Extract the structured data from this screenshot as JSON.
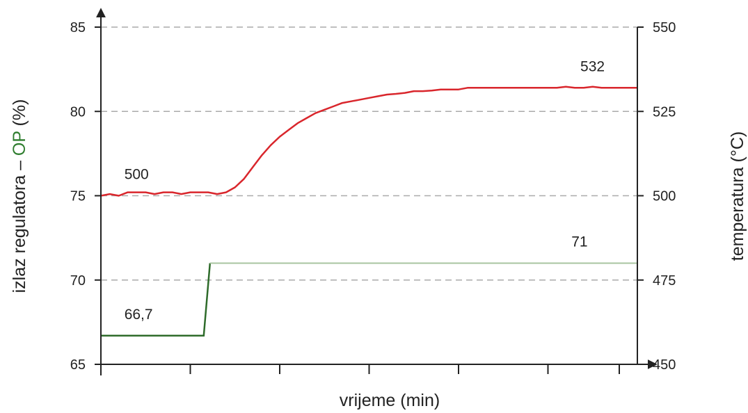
{
  "chart_data": {
    "type": "line",
    "xlabel": "vrijeme (min)",
    "ylabel_left_prefix": "izlaz regulatora – ",
    "ylabel_left_highlight": "OP",
    "ylabel_left_suffix": " (%)",
    "ylabel_right": "temperatura (°C)",
    "left_axis": {
      "ylim": [
        65,
        85
      ],
      "ticks": [
        "65",
        "70",
        "75",
        "80",
        "85"
      ]
    },
    "right_axis": {
      "ylim": [
        450,
        550
      ],
      "ticks": [
        "450",
        "475",
        "500",
        "525",
        "550"
      ]
    },
    "grid": "dashed horizontal",
    "colors": {
      "temperature": "#d9262c",
      "op": "#2e6b2a",
      "op_after": "#a8c4a0",
      "grid": "#aaaaaa",
      "axis": "#222222",
      "op_label": "#2e7d2e"
    },
    "series": [
      {
        "axis": "right",
        "x": [
          0,
          1,
          2,
          3,
          4,
          5,
          6,
          7,
          8,
          9,
          10,
          11,
          12,
          13,
          14,
          15,
          16,
          17,
          18,
          19,
          20,
          21,
          22,
          23,
          24,
          25,
          26,
          27,
          28,
          29,
          30,
          31,
          32,
          33,
          34,
          35,
          36,
          37,
          38,
          39,
          40,
          41,
          42,
          43,
          44,
          45,
          46,
          47,
          48,
          49,
          50,
          51,
          52,
          53,
          54,
          55,
          56,
          57,
          58,
          59,
          60
        ],
        "values": [
          500,
          500.5,
          500,
          501,
          501,
          501,
          500.5,
          501,
          501,
          500.5,
          501,
          501,
          501,
          500.5,
          501,
          502.5,
          505,
          508.5,
          512,
          515,
          517.5,
          519.5,
          521.5,
          523,
          524.5,
          525.5,
          526.5,
          527.5,
          528,
          528.5,
          529,
          529.5,
          530,
          530.2,
          530.5,
          531,
          531,
          531.2,
          531.5,
          531.5,
          531.5,
          532,
          532,
          532,
          532,
          532,
          532,
          532,
          532,
          532,
          532,
          532,
          532.3,
          532,
          532,
          532.3,
          532,
          532,
          532,
          532,
          532
        ]
      },
      {
        "axis": "left",
        "x": [
          0,
          11.5,
          12.2,
          60
        ],
        "values": [
          66.7,
          66.7,
          71,
          71
        ]
      }
    ],
    "annotations": [
      {
        "text": "500",
        "series": 0,
        "x": 2,
        "y": 500
      },
      {
        "text": "532",
        "series": 0,
        "x": 53,
        "y": 532
      },
      {
        "text": "66,7",
        "series": 1,
        "x": 2,
        "y": 66.7
      },
      {
        "text": "71",
        "series": 1,
        "x": 52,
        "y": 71
      }
    ]
  }
}
